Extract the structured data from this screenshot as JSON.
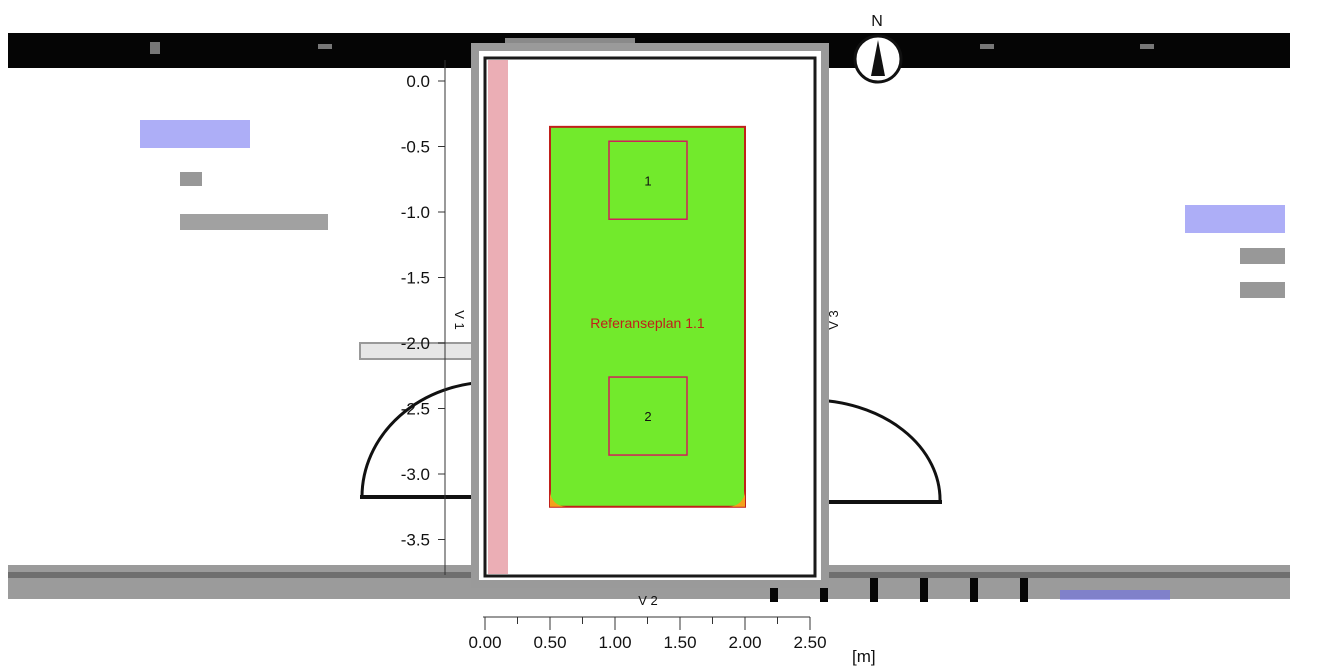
{
  "north_label": "N",
  "unit_label": "[m]",
  "reference_plane_label": "Referanseplan 1.1",
  "wall_labels": {
    "left": "V 1",
    "right": "V 3",
    "bottom": "V 2"
  },
  "measurement_points": [
    {
      "label": "1",
      "x_m": 1.0,
      "y_m": -0.75
    },
    {
      "label": "2",
      "x_m": 1.0,
      "y_m": -2.55
    }
  ],
  "y_ticks": [
    {
      "value": 0.0,
      "label": "0.0"
    },
    {
      "value": -0.5,
      "label": "-0.5"
    },
    {
      "value": -1.0,
      "label": "-1.0"
    },
    {
      "value": -1.5,
      "label": "-1.5"
    },
    {
      "value": -2.0,
      "label": "-2.0"
    },
    {
      "value": -2.5,
      "label": "-2.5"
    },
    {
      "value": -3.0,
      "label": "-3.0"
    },
    {
      "value": -3.5,
      "label": "-3.5"
    }
  ],
  "x_ticks": [
    {
      "value": 0.0,
      "label": "0.00"
    },
    {
      "value": 0.5,
      "label": "0.50"
    },
    {
      "value": 1.0,
      "label": "1.00"
    },
    {
      "value": 1.5,
      "label": "1.50"
    },
    {
      "value": 2.0,
      "label": "2.00"
    },
    {
      "value": 2.5,
      "label": "2.50"
    }
  ],
  "room_area": {
    "x_from": 0.5,
    "x_to": 2.0,
    "y_from": -0.35,
    "y_to": -3.25
  },
  "colors": {
    "area_fill": "#72ea2c",
    "area_outline": "#c0201a",
    "corner_fill": "#f4a11c",
    "wall_gray": "#9a9a9a",
    "wall_pink": "#e8a0a8",
    "point_box": "#d0205a",
    "blur_blue": "#6a6cf0"
  }
}
